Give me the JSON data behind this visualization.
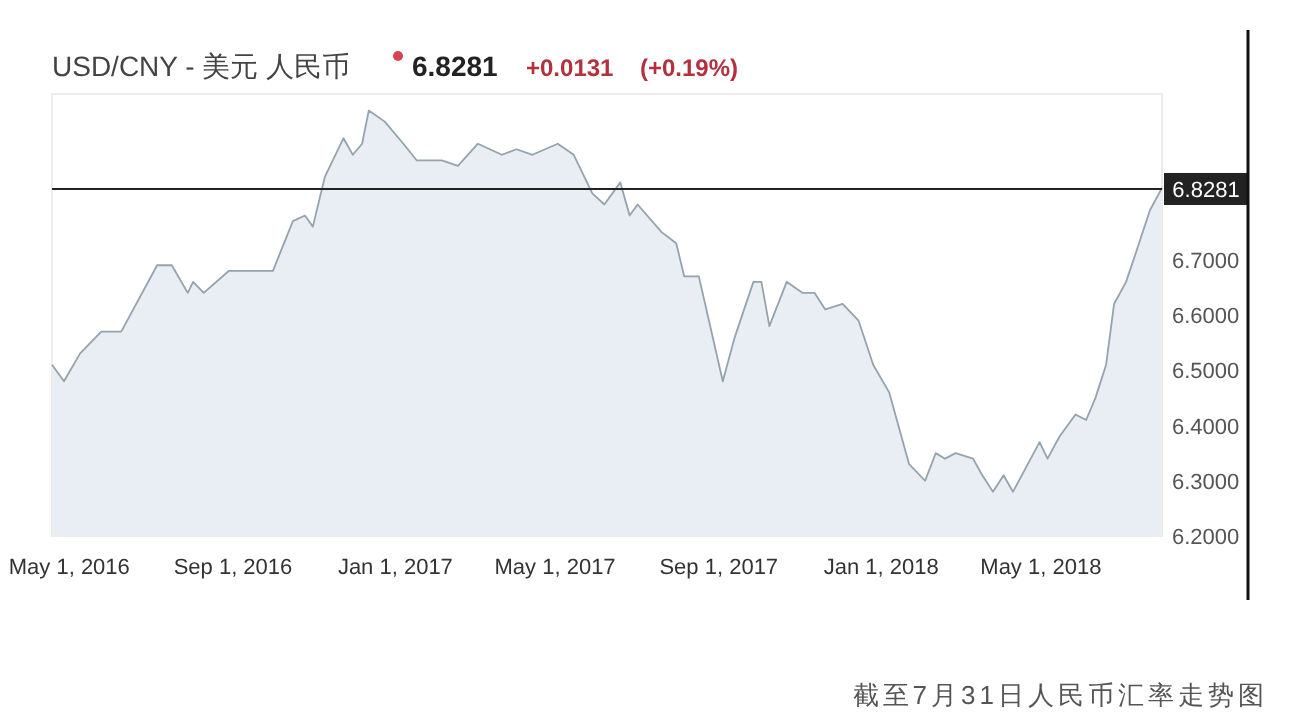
{
  "chart_data": {
    "type": "area",
    "title": "USD/CNY - 美元 人民币",
    "annotations": [
      "6.8281",
      "+0.0131",
      "(+0.19%)",
      "截至7月31日人民币汇率走势图"
    ],
    "x": [
      "2016-04-18",
      "2016-04-27",
      "2016-05-09",
      "2016-05-25",
      "2016-06-09",
      "2016-07-06",
      "2016-07-17",
      "2016-07-29",
      "2016-08-02",
      "2016-08-10",
      "2016-08-29",
      "2016-10-01",
      "2016-10-16",
      "2016-10-25",
      "2016-10-31",
      "2016-11-09",
      "2016-11-23",
      "2016-11-30",
      "2016-12-07",
      "2016-12-12",
      "2016-12-24",
      "2017-01-07",
      "2017-01-17",
      "2017-01-29",
      "2017-02-05",
      "2017-02-17",
      "2017-03-04",
      "2017-03-22",
      "2017-04-02",
      "2017-04-14",
      "2017-05-03",
      "2017-05-15",
      "2017-05-29",
      "2017-06-07",
      "2017-06-19",
      "2017-06-26",
      "2017-07-02",
      "2017-07-20",
      "2017-07-31",
      "2017-08-06",
      "2017-08-17",
      "2017-09-04",
      "2017-09-13",
      "2017-09-27",
      "2017-10-03",
      "2017-10-09",
      "2017-10-22",
      "2017-11-03",
      "2017-11-12",
      "2017-11-20",
      "2017-12-03",
      "2017-12-15",
      "2017-12-26",
      "2018-01-07",
      "2018-01-22",
      "2018-02-03",
      "2018-02-11",
      "2018-02-18",
      "2018-02-26",
      "2018-03-11",
      "2018-03-18",
      "2018-03-26",
      "2018-04-03",
      "2018-04-10",
      "2018-04-30",
      "2018-05-06",
      "2018-05-15",
      "2018-05-27",
      "2018-06-04",
      "2018-06-11",
      "2018-06-19",
      "2018-06-25",
      "2018-07-04",
      "2018-07-11",
      "2018-07-22",
      "2018-07-31"
    ],
    "series": [
      {
        "color": "#94a3ad",
        "values": [
          6.51,
          6.48,
          6.53,
          6.57,
          6.57,
          6.69,
          6.69,
          6.64,
          6.66,
          6.64,
          6.68,
          6.68,
          6.77,
          6.78,
          6.76,
          6.85,
          6.92,
          6.89,
          6.91,
          6.97,
          6.95,
          6.91,
          6.88,
          6.88,
          6.88,
          6.87,
          6.91,
          6.89,
          6.9,
          6.89,
          6.91,
          6.89,
          6.82,
          6.8,
          6.84,
          6.78,
          6.8,
          6.75,
          6.73,
          6.67,
          6.67,
          6.48,
          6.56,
          6.66,
          6.66,
          6.58,
          6.66,
          6.64,
          6.64,
          6.61,
          6.62,
          6.59,
          6.51,
          6.46,
          6.33,
          6.3,
          6.35,
          6.34,
          6.35,
          6.34,
          6.31,
          6.28,
          6.31,
          6.28,
          6.37,
          6.34,
          6.38,
          6.42,
          6.41,
          6.45,
          6.51,
          6.62,
          6.66,
          6.71,
          6.79,
          6.83
        ]
      }
    ],
    "xlim": [
      "2016-04-18",
      "2018-07-31"
    ],
    "xticks": [
      {
        "value": "2016-05-01",
        "label": "May 1, 2016"
      },
      {
        "value": "2016-09-01",
        "label": "Sep 1, 2016"
      },
      {
        "value": "2017-01-01",
        "label": "Jan 1, 2017"
      },
      {
        "value": "2017-05-01",
        "label": "May 1, 2017"
      },
      {
        "value": "2017-09-01",
        "label": "Sep 1, 2017"
      },
      {
        "value": "2018-01-01",
        "label": "Jan 1, 2018"
      },
      {
        "value": "2018-05-01",
        "label": "May 1, 2018"
      }
    ],
    "ylim": [
      6.2,
      7.0
    ],
    "yticks": [
      {
        "value": 6.2,
        "label": "6.2000"
      },
      {
        "value": 6.3,
        "label": "6.3000"
      },
      {
        "value": 6.4,
        "label": "6.4000"
      },
      {
        "value": 6.5,
        "label": "6.5000"
      },
      {
        "value": 6.6,
        "label": "6.6000"
      },
      {
        "value": 6.7,
        "label": "6.7000"
      }
    ],
    "ref_lines": [
      {
        "axis": "y",
        "value": 6.8281,
        "label": "6.8281",
        "color": "#222222"
      }
    ],
    "grid": false
  }
}
